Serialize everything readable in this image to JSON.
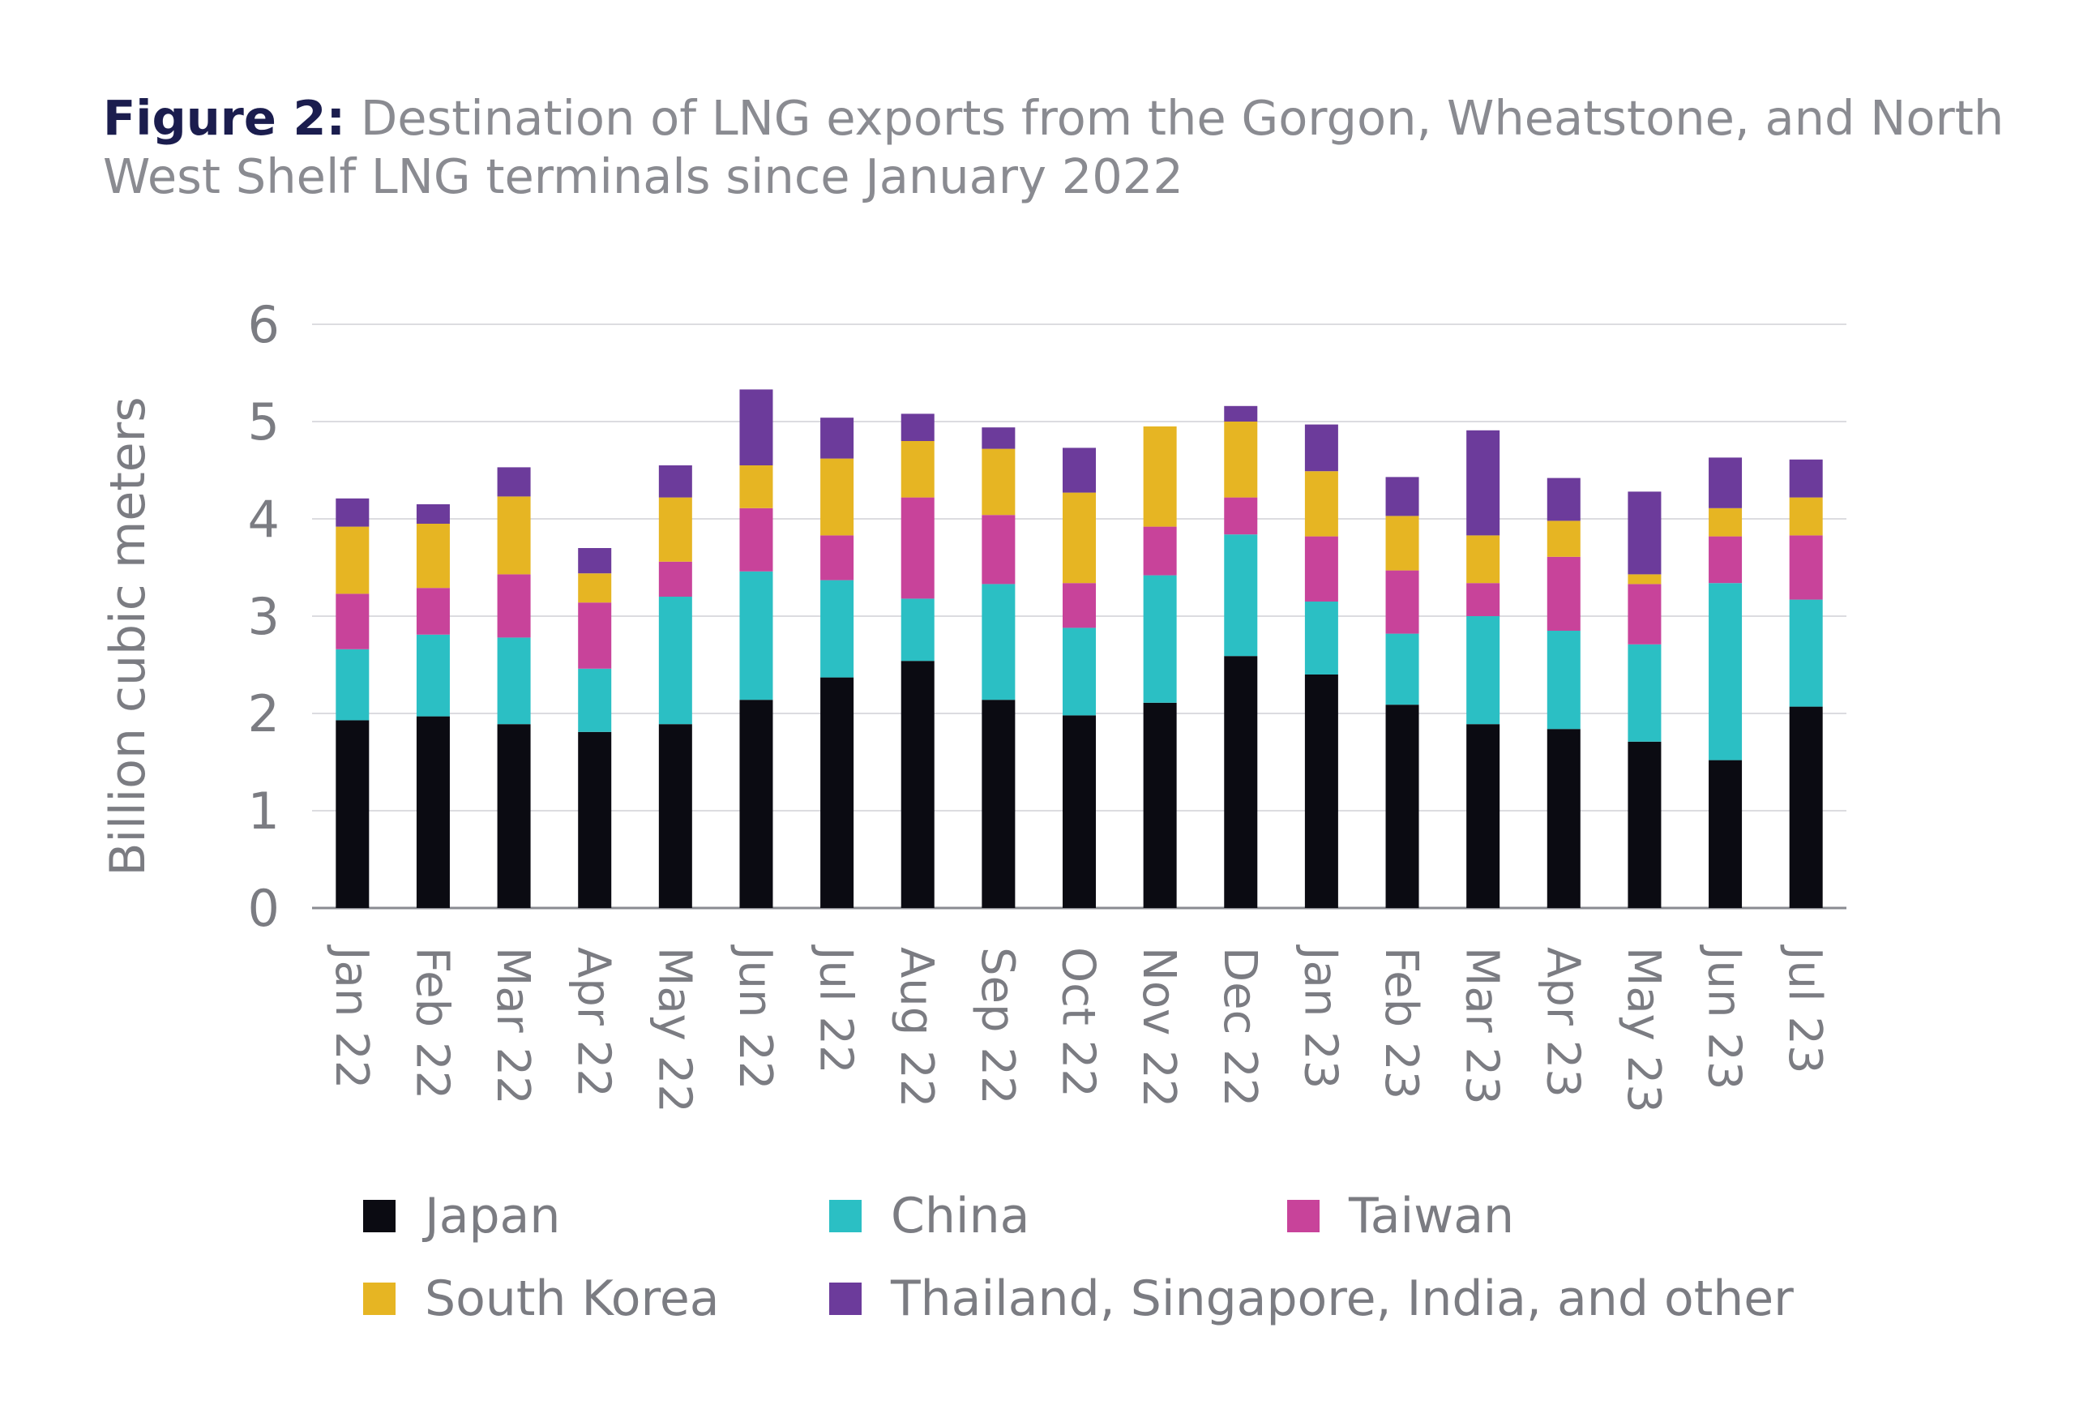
{
  "title": {
    "figure_label": "Figure 2:",
    "text": "Destination of LNG exports from the Gorgon, Wheatstone, and North West Shelf LNG terminals since January 2022"
  },
  "colors": {
    "Japan": "#0b0b12",
    "China": "#2bbfc4",
    "Taiwan": "#c8439a",
    "South Korea": "#e6b523",
    "Thailand, Singapore, India, and other": "#6c3b9b",
    "grid": "#dcdce0",
    "axis": "#8a8b91"
  },
  "chart_data": {
    "type": "bar",
    "stacked": true,
    "title": "Destination of LNG exports from the Gorgon, Wheatstone, and North West Shelf LNG terminals since January 2022",
    "ylabel": "Billion cubic meters",
    "xlabel": "",
    "ylim": [
      0,
      6
    ],
    "yticks": [
      0,
      1,
      2,
      3,
      4,
      5,
      6
    ],
    "grid": true,
    "legend_position": "bottom",
    "categories": [
      "Jan 22",
      "Feb 22",
      "Mar 22",
      "Apr 22",
      "May 22",
      "Jun 22",
      "Jul 22",
      "Aug 22",
      "Sep 22",
      "Oct 22",
      "Nov 22",
      "Dec 22",
      "Jan 23",
      "Feb 23",
      "Mar 23",
      "Apr 23",
      "May 23",
      "Jun 23",
      "Jul 23"
    ],
    "series": [
      {
        "name": "Japan",
        "values": [
          1.93,
          1.97,
          1.89,
          1.81,
          1.89,
          2.14,
          2.37,
          2.54,
          2.14,
          1.98,
          2.11,
          2.59,
          2.4,
          2.09,
          1.89,
          1.84,
          1.71,
          1.52,
          2.07
        ]
      },
      {
        "name": "China",
        "values": [
          0.73,
          0.84,
          0.89,
          0.65,
          1.31,
          1.32,
          1.0,
          0.64,
          1.19,
          0.9,
          1.31,
          1.25,
          0.75,
          0.73,
          1.11,
          1.01,
          1.0,
          1.82,
          1.1
        ]
      },
      {
        "name": "Taiwan",
        "values": [
          0.57,
          0.48,
          0.65,
          0.68,
          0.36,
          0.65,
          0.46,
          1.04,
          0.71,
          0.46,
          0.5,
          0.38,
          0.67,
          0.65,
          0.34,
          0.76,
          0.62,
          0.48,
          0.66
        ]
      },
      {
        "name": "South Korea",
        "values": [
          0.69,
          0.66,
          0.8,
          0.3,
          0.66,
          0.44,
          0.79,
          0.58,
          0.68,
          0.93,
          1.03,
          0.78,
          0.67,
          0.56,
          0.49,
          0.37,
          0.1,
          0.29,
          0.39
        ]
      },
      {
        "name": "Thailand, Singapore, India, and other",
        "values": [
          0.29,
          0.2,
          0.3,
          0.26,
          0.33,
          0.78,
          0.42,
          0.28,
          0.22,
          0.46,
          0.0,
          0.16,
          0.48,
          0.4,
          1.08,
          0.44,
          0.85,
          0.52,
          0.39
        ]
      }
    ]
  }
}
